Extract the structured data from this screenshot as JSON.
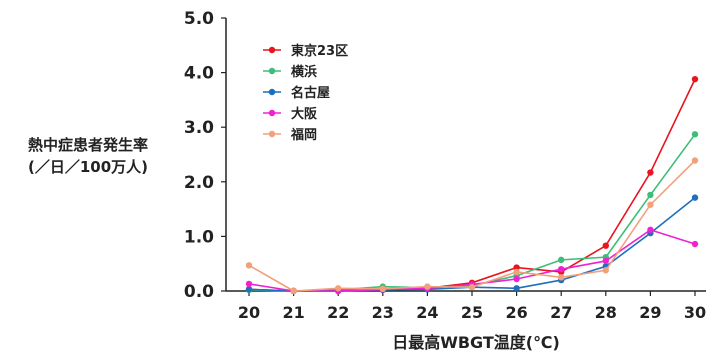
{
  "chart_data": {
    "type": "line",
    "xlabel": "日最高WBGT温度(℃)",
    "ylabel": "熱中症患者発生率",
    "ylabel_sub": "(／日／100万人)",
    "x": [
      20,
      21,
      22,
      23,
      24,
      25,
      26,
      27,
      28,
      29,
      30
    ],
    "ylim": [
      0,
      5
    ],
    "yticks": [
      "0.0",
      "1.0",
      "2.0",
      "3.0",
      "4.0",
      "5.0"
    ],
    "grid": false,
    "legend_position": "top-left",
    "series": [
      {
        "name": "東京23区",
        "color": "#e8141f",
        "values": [
          0.03,
          0.0,
          0.0,
          0.02,
          0.05,
          0.15,
          0.43,
          0.35,
          0.83,
          2.17,
          3.88
        ]
      },
      {
        "name": "横浜",
        "color": "#3dbd78",
        "values": [
          0.02,
          0.0,
          0.02,
          0.08,
          0.06,
          0.1,
          0.28,
          0.57,
          0.62,
          1.76,
          2.87
        ]
      },
      {
        "name": "名古屋",
        "color": "#1e6fbd",
        "values": [
          0.03,
          0.0,
          0.01,
          0.02,
          0.03,
          0.07,
          0.05,
          0.2,
          0.45,
          1.06,
          1.71
        ]
      },
      {
        "name": "大阪",
        "color": "#ee22d2",
        "values": [
          0.13,
          0.0,
          0.0,
          0.03,
          0.05,
          0.12,
          0.22,
          0.4,
          0.55,
          1.12,
          0.86
        ]
      },
      {
        "name": "福岡",
        "color": "#f2a07a",
        "values": [
          0.47,
          0.0,
          0.05,
          0.04,
          0.08,
          0.07,
          0.35,
          0.25,
          0.38,
          1.58,
          2.39
        ]
      }
    ]
  }
}
